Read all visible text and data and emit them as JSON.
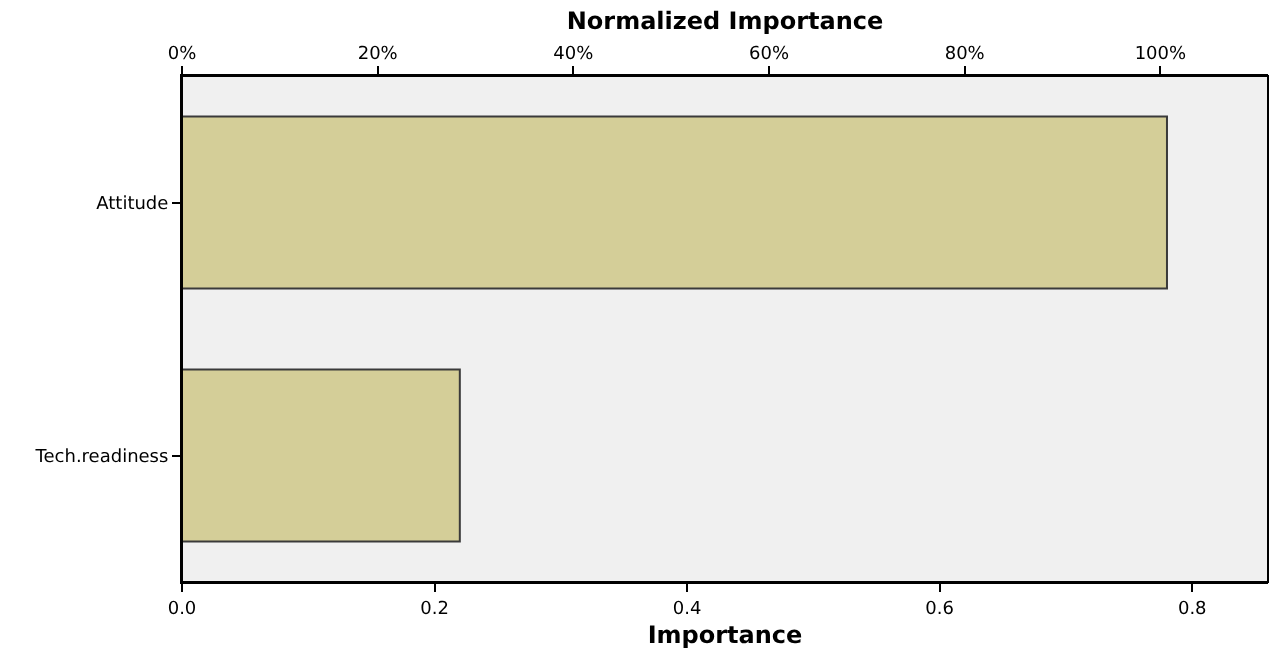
{
  "chart_data": {
    "type": "bar",
    "orientation": "horizontal",
    "xlabel": "Importance",
    "x2label": "Normalized Importance",
    "categories": [
      "Attitude",
      "Tech.readiness"
    ],
    "series": [
      {
        "color": "#d4ce98",
        "values": [
          0.78,
          0.22
        ]
      }
    ],
    "xlim": [
      0,
      0.86
    ],
    "xticks": [
      {
        "value": 0,
        "label": "0.0"
      },
      0.2,
      0.4,
      0.6,
      0.8
    ],
    "x2lim": [
      0,
      111
    ],
    "x2ticks": [
      {
        "value": 0,
        "label": "0%"
      },
      {
        "value": 20,
        "label": "20%"
      },
      {
        "value": 40,
        "label": "40%"
      },
      {
        "value": 60,
        "label": "60%"
      },
      {
        "value": 80,
        "label": "80%"
      },
      {
        "value": 100,
        "label": "100%"
      }
    ],
    "grid": false
  }
}
